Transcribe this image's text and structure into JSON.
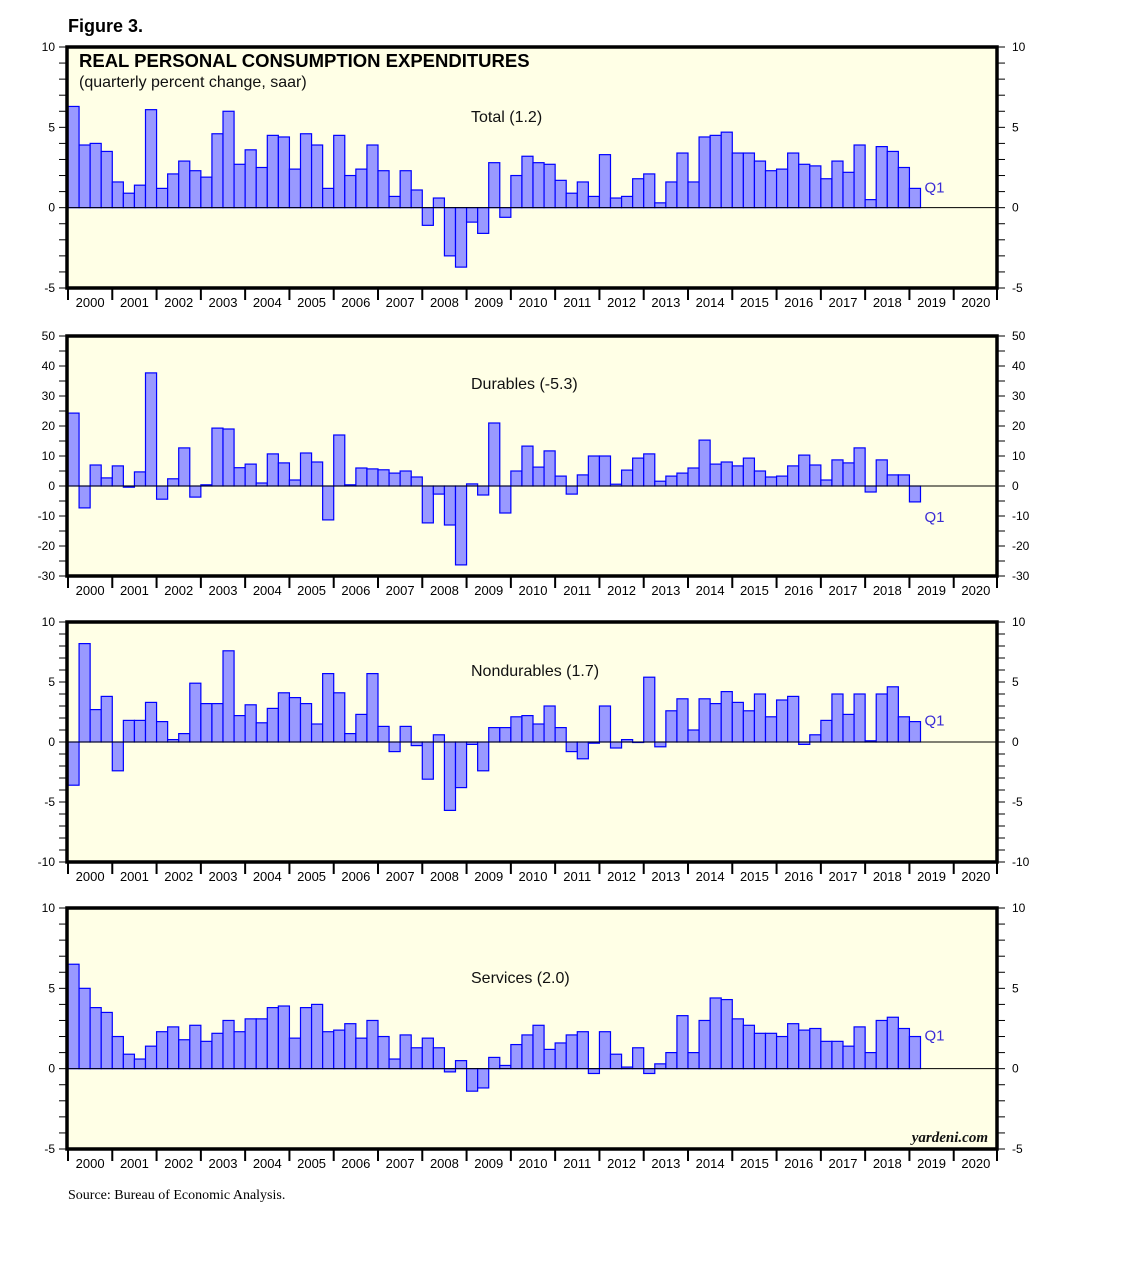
{
  "figure_label": "Figure 3.",
  "title": "REAL PERSONAL CONSUMPTION EXPENDITURES",
  "subtitle": "(quarterly percent change, saar)",
  "watermark": "yardeni.com",
  "source": "Source: Bureau of Economic Analysis.",
  "colors": {
    "bar_fill": "#9999ff",
    "bar_stroke": "#0000ff",
    "plot_bg": "#ffffe6",
    "last_label": "#3a2bd6"
  },
  "chart_data": [
    {
      "type": "bar",
      "label": "Total (1.2)",
      "last_label": "Q1",
      "x_start": "2000Q1",
      "frequency": "quarterly",
      "year_labels": [
        "2000",
        "2001",
        "2002",
        "2003",
        "2004",
        "2005",
        "2006",
        "2007",
        "2008",
        "2009",
        "2010",
        "2011",
        "2012",
        "2013",
        "2014",
        "2015",
        "2016",
        "2017",
        "2018",
        "2019",
        "2020"
      ],
      "ylim": [
        -5,
        10
      ],
      "major_step": 5,
      "minor_step": 1,
      "values": [
        6.3,
        3.9,
        4.0,
        3.5,
        1.6,
        0.9,
        1.4,
        6.1,
        1.2,
        2.1,
        2.9,
        2.3,
        1.9,
        4.6,
        6.0,
        2.7,
        3.6,
        2.5,
        4.5,
        4.4,
        2.4,
        4.6,
        3.9,
        1.2,
        4.5,
        2.0,
        2.4,
        3.9,
        2.3,
        0.7,
        2.3,
        1.1,
        -1.1,
        0.6,
        -3.0,
        -3.7,
        -0.9,
        -1.6,
        2.8,
        -0.6,
        2.0,
        3.2,
        2.8,
        2.7,
        1.7,
        0.9,
        1.6,
        0.7,
        3.3,
        0.6,
        0.7,
        1.8,
        2.1,
        0.3,
        1.6,
        3.4,
        1.6,
        4.4,
        4.5,
        4.7,
        3.4,
        3.4,
        2.9,
        2.3,
        2.4,
        3.4,
        2.7,
        2.6,
        1.8,
        2.9,
        2.2,
        3.9,
        0.5,
        3.8,
        3.5,
        2.5,
        1.2
      ]
    },
    {
      "type": "bar",
      "label": "Durables (-5.3)",
      "last_label": "Q1",
      "x_start": "2000Q1",
      "frequency": "quarterly",
      "year_labels": [
        "2000",
        "2001",
        "2002",
        "2003",
        "2004",
        "2005",
        "2006",
        "2007",
        "2008",
        "2009",
        "2010",
        "2011",
        "2012",
        "2013",
        "2014",
        "2015",
        "2016",
        "2017",
        "2018",
        "2019",
        "2020"
      ],
      "ylim": [
        -30,
        50
      ],
      "major_step": 10,
      "minor_step": 5,
      "values": [
        24.3,
        -7.3,
        7.0,
        2.7,
        6.7,
        -0.4,
        4.7,
        37.7,
        -4.4,
        2.4,
        12.7,
        -3.7,
        0.4,
        19.3,
        19.0,
        6.1,
        7.3,
        1.0,
        10.7,
        7.7,
        2.0,
        11.0,
        8.0,
        -11.3,
        17.0,
        0.4,
        6.0,
        5.7,
        5.4,
        4.3,
        5.0,
        3.0,
        -12.3,
        -2.7,
        -13.0,
        -26.3,
        0.7,
        -3.0,
        21.0,
        -9.0,
        5.0,
        13.3,
        6.3,
        11.7,
        3.3,
        -2.7,
        3.7,
        10.0,
        10.0,
        0.6,
        5.3,
        9.3,
        10.7,
        1.6,
        3.3,
        4.3,
        6.0,
        15.3,
        7.3,
        8.0,
        6.7,
        9.3,
        5.0,
        3.0,
        3.3,
        6.7,
        10.3,
        7.0,
        2.0,
        8.7,
        7.7,
        12.7,
        -2.0,
        8.7,
        3.7,
        3.7,
        -5.3
      ]
    },
    {
      "type": "bar",
      "label": "Nondurables (1.7)",
      "last_label": "Q1",
      "x_start": "2000Q1",
      "frequency": "quarterly",
      "year_labels": [
        "2000",
        "2001",
        "2002",
        "2003",
        "2004",
        "2005",
        "2006",
        "2007",
        "2008",
        "2009",
        "2010",
        "2011",
        "2012",
        "2013",
        "2014",
        "2015",
        "2016",
        "2017",
        "2018",
        "2019",
        "2020"
      ],
      "ylim": [
        -10,
        10
      ],
      "major_step": 5,
      "minor_step": 1,
      "values": [
        -3.6,
        8.2,
        2.7,
        3.8,
        -2.4,
        1.8,
        1.8,
        3.3,
        1.7,
        0.2,
        0.7,
        4.9,
        3.2,
        3.2,
        7.6,
        2.2,
        3.1,
        1.6,
        2.8,
        4.1,
        3.7,
        3.2,
        1.5,
        5.7,
        4.1,
        0.7,
        2.3,
        5.7,
        1.3,
        -0.8,
        1.3,
        -0.3,
        -3.1,
        0.6,
        -5.7,
        -3.8,
        -0.2,
        -2.4,
        1.2,
        1.2,
        2.1,
        2.2,
        1.5,
        3.0,
        1.2,
        -0.8,
        -1.4,
        -0.1,
        3.0,
        -0.5,
        0.2,
        0.0,
        5.4,
        -0.4,
        2.6,
        3.6,
        1.0,
        3.6,
        3.2,
        4.2,
        3.3,
        2.6,
        4.0,
        2.1,
        3.5,
        3.8,
        -0.2,
        0.6,
        1.8,
        4.0,
        2.3,
        4.0,
        0.1,
        4.0,
        4.6,
        2.1,
        1.7
      ]
    },
    {
      "type": "bar",
      "label": "Services (2.0)",
      "last_label": "Q1",
      "x_start": "2000Q1",
      "frequency": "quarterly",
      "year_labels": [
        "2000",
        "2001",
        "2002",
        "2003",
        "2004",
        "2005",
        "2006",
        "2007",
        "2008",
        "2009",
        "2010",
        "2011",
        "2012",
        "2013",
        "2014",
        "2015",
        "2016",
        "2017",
        "2018",
        "2019",
        "2020"
      ],
      "ylim": [
        -5,
        10
      ],
      "major_step": 5,
      "minor_step": 1,
      "values": [
        6.5,
        5.0,
        3.8,
        3.5,
        2.0,
        0.9,
        0.6,
        1.4,
        2.3,
        2.6,
        1.8,
        2.7,
        1.7,
        2.2,
        3.0,
        2.3,
        3.1,
        3.1,
        3.8,
        3.9,
        1.9,
        3.8,
        4.0,
        2.3,
        2.4,
        2.8,
        1.9,
        3.0,
        2.0,
        0.6,
        2.1,
        1.3,
        1.9,
        1.3,
        -0.2,
        0.5,
        -1.4,
        -1.2,
        0.7,
        0.2,
        1.5,
        2.1,
        2.7,
        1.2,
        1.6,
        2.1,
        2.3,
        -0.3,
        2.3,
        0.9,
        0.1,
        1.3,
        -0.3,
        0.3,
        1.0,
        3.3,
        1.0,
        3.0,
        4.4,
        4.3,
        3.1,
        2.7,
        2.2,
        2.2,
        2.0,
        2.8,
        2.4,
        2.5,
        1.7,
        1.7,
        1.4,
        2.6,
        1.0,
        3.0,
        3.2,
        2.5,
        2.0
      ]
    }
  ]
}
